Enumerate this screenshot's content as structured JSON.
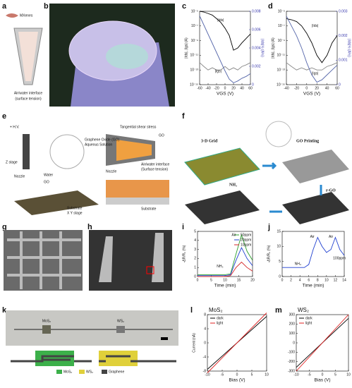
{
  "panels": {
    "a": {
      "label": "a",
      "texts": [
        "MXenes",
        "Air/water interface",
        "(surface tension)"
      ]
    },
    "b": {
      "label": "b"
    },
    "c": {
      "label": "c"
    },
    "d": {
      "label": "d"
    },
    "e": {
      "label": "e",
      "texts": [
        "+ H.V.",
        "Graphene Oxide (GO)",
        "Aqueous Solution",
        "Z stage",
        "Nozzle",
        "Water",
        "GO",
        "Substrate",
        "X Y stage",
        "Tangential shear stress",
        "GO",
        "Nozzle",
        "Air/water interface",
        "(Surface tension)",
        "Substrate"
      ]
    },
    "f": {
      "label": "f",
      "texts": [
        "3-D Grid",
        "GO Printing",
        "NH₃",
        "r-GO"
      ]
    },
    "g": {
      "label": "g"
    },
    "h": {
      "label": "h"
    },
    "i": {
      "label": "i"
    },
    "j": {
      "label": "j"
    },
    "k": {
      "label": "k",
      "texts": [
        "MoS₂",
        "WS₂"
      ],
      "legend": [
        "MoS₂",
        "WS₂",
        "Graphene"
      ]
    },
    "l": {
      "label": "l"
    },
    "m": {
      "label": "m"
    }
  },
  "chart_data": [
    {
      "type": "line",
      "log_y": true,
      "xlabel": "VGS (V)",
      "ylabel": "|Ids|, |Igs| (A)",
      "y2label": "|Ids|½ (A½)",
      "annotations": [
        "|Ids|",
        "|Igs|"
      ],
      "x": [
        -60,
        -50,
        -40,
        -30,
        -20,
        -10,
        0,
        10,
        20,
        30,
        40,
        50,
        60
      ],
      "xlim": [
        -60,
        60
      ],
      "xticks": [
        -60,
        -40,
        -20,
        0,
        20,
        40,
        60
      ],
      "ylim": [
        1e-15,
        1e-05
      ],
      "yticks": [
        {
          "value": 1e-05,
          "label": "10⁻⁵"
        },
        {
          "value": 1e-07,
          "label": "10⁻⁷"
        },
        {
          "value": 1e-09,
          "label": "10⁻⁹"
        },
        {
          "value": 1e-11,
          "label": "10⁻¹¹"
        },
        {
          "value": 1e-13,
          "label": "10⁻¹³"
        },
        {
          "value": 1e-15,
          "label": "10⁻¹⁵"
        }
      ],
      "y2lim": [
        0,
        0.008
      ],
      "y2ticks": [
        0,
        0.002,
        0.004,
        0.006,
        0.008
      ],
      "series": [
        {
          "name": "Ids",
          "color": "#000000",
          "values": [
            1e-05,
            8e-06,
            5e-06,
            3e-06,
            1e-06,
            3e-07,
            5e-08,
            5e-09,
            5e-11,
            1e-10,
            5e-10,
            2e-09,
            8e-09
          ]
        },
        {
          "name": "Igs",
          "color": "#888888",
          "values": [
            1e-12,
            3e-13,
            1e-13,
            2e-13,
            1e-13,
            1e-13,
            3e-13,
            1e-13,
            2e-13,
            1e-13,
            3e-13,
            5e-13,
            1e-12
          ]
        },
        {
          "name": "sqrt",
          "color": "#5566aa",
          "axis": "y2",
          "values": [
            0.0075,
            0.0065,
            0.0055,
            0.0045,
            0.0035,
            0.0025,
            0.0015,
            0.0006,
            0.0002,
            0.0004,
            0.0007,
            0.0009,
            0.0012
          ]
        }
      ]
    },
    {
      "type": "line",
      "log_y": true,
      "xlabel": "VGS (V)",
      "ylabel": "|Ids|, |Igs| (A)",
      "y2label": "|Ids|½ (A½)",
      "annotations": [
        "|Ids|",
        "|Igs|"
      ],
      "x": [
        -40,
        -30,
        -20,
        -10,
        0,
        10,
        20,
        30,
        40,
        50,
        60
      ],
      "xlim": [
        -40,
        60
      ],
      "xticks": [
        -40,
        -20,
        0,
        20,
        40,
        60
      ],
      "ylim": [
        1e-15,
        1e-05
      ],
      "yticks": [
        {
          "value": 1e-05,
          "label": "10⁻⁵"
        },
        {
          "value": 1e-07,
          "label": "10⁻⁷"
        },
        {
          "value": 1e-09,
          "label": "10⁻⁹"
        },
        {
          "value": 1e-11,
          "label": "10⁻¹¹"
        },
        {
          "value": 1e-13,
          "label": "10⁻¹³"
        },
        {
          "value": 1e-15,
          "label": "10⁻¹⁵"
        }
      ],
      "y2lim": [
        0,
        0.003
      ],
      "y2ticks": [
        0,
        0.001,
        0.002,
        0.003
      ],
      "series": [
        {
          "name": "Ids",
          "color": "#000000",
          "values": [
            1e-06,
            7e-07,
            4e-07,
            1e-07,
            1e-08,
            5e-10,
            1e-11,
            1e-12,
            1e-11,
            5e-10,
            5e-09
          ]
        },
        {
          "name": "Igs",
          "color": "#888888",
          "values": [
            1e-12,
            3e-13,
            1e-13,
            2e-13,
            1e-13,
            2e-13,
            1e-13,
            1e-13,
            3e-13,
            5e-13,
            1e-12
          ]
        },
        {
          "name": "sqrt",
          "color": "#5566aa",
          "axis": "y2",
          "values": [
            0.0028,
            0.0024,
            0.002,
            0.0015,
            0.0009,
            0.0004,
            0.0001,
            0.0002,
            0.0004,
            0.0006,
            0.0008
          ]
        }
      ]
    },
    {
      "type": "line",
      "xlabel": "Time (min)",
      "ylabel": "-ΔR/R₀ (%)",
      "annotations": [
        "NH₃",
        "Air"
      ],
      "legend": "upper right",
      "x": [
        0,
        2,
        4,
        6,
        8,
        10,
        12,
        14,
        16,
        18,
        20
      ],
      "xlim": [
        0,
        20
      ],
      "xticks": [
        0,
        5,
        10,
        15,
        20
      ],
      "ylim": [
        0,
        5
      ],
      "yticks": [
        0,
        1,
        2,
        3,
        4,
        5
      ],
      "series": [
        {
          "name": "50ppm",
          "color": "#2ca02c",
          "values": [
            0.2,
            0.2,
            0.2,
            0.2,
            0.2,
            0.2,
            0.3,
            2.5,
            4.6,
            2.8,
            1.8
          ]
        },
        {
          "name": "20ppm",
          "color": "#1f3fd0",
          "values": [
            0.1,
            0.1,
            0.1,
            0.1,
            0.1,
            0.1,
            0.2,
            1.8,
            3.2,
            2,
            1.2
          ]
        },
        {
          "name": "10ppm",
          "color": "#d62728",
          "values": [
            0,
            0,
            0,
            0,
            0,
            0,
            0.1,
            1,
            1.6,
            1,
            0.6
          ]
        }
      ]
    },
    {
      "type": "line",
      "xlabel": "Time (min)",
      "ylabel": "-ΔR/R₀ (%)",
      "annotations": [
        "NH₃",
        "Air",
        "Air",
        "100ppm"
      ],
      "x": [
        0,
        1,
        2,
        3,
        4,
        5,
        6,
        7,
        8,
        9,
        10,
        11,
        12,
        13,
        14
      ],
      "xlim": [
        0,
        14
      ],
      "xticks": [
        0,
        2,
        4,
        6,
        8,
        10,
        12,
        14
      ],
      "ylim": [
        0,
        15
      ],
      "yticks": [
        0,
        5,
        10,
        15
      ],
      "series": [
        {
          "name": "100ppm",
          "color": "#1f3fd0",
          "values": [
            3,
            3,
            3,
            3,
            3,
            3,
            4,
            9,
            13,
            10,
            8,
            9,
            13,
            9,
            7
          ]
        }
      ]
    },
    {
      "type": "line",
      "title": "MoS₂",
      "xlabel": "Bias (V)",
      "ylabel": "Current (nA)",
      "legend": "upper left",
      "x": [
        -10,
        10
      ],
      "xlim": [
        -10,
        10
      ],
      "xticks": [
        -10,
        -5,
        0,
        5,
        10
      ],
      "ylim": [
        -8,
        8
      ],
      "yticks": [
        -8,
        -4,
        0,
        4,
        8
      ],
      "series": [
        {
          "name": "dark",
          "color": "#000000",
          "values": [
            -7.5,
            7.5
          ]
        },
        {
          "name": "light",
          "color": "#e02020",
          "values": [
            -8.5,
            8.5
          ]
        }
      ]
    },
    {
      "type": "line",
      "title": "WS₂",
      "xlabel": "Bias (V)",
      "ylabel": "",
      "legend": "upper left",
      "x": [
        -10,
        10
      ],
      "xlim": [
        -10,
        10
      ],
      "xticks": [
        -10,
        -5,
        0,
        5,
        10
      ],
      "ylim": [
        -300,
        300
      ],
      "yticks": [
        -300,
        -200,
        -100,
        0,
        100,
        200,
        300
      ],
      "series": [
        {
          "name": "dark",
          "color": "#000000",
          "values": [
            -260,
            260
          ]
        },
        {
          "name": "light",
          "color": "#e02020",
          "values": [
            -300,
            300
          ]
        }
      ]
    }
  ]
}
